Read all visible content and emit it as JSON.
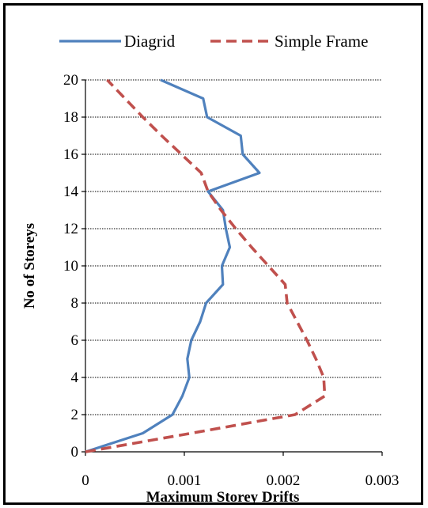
{
  "chart_data": {
    "type": "line",
    "xlabel": "Maximum Storey Drifts",
    "ylabel": "No of Storeys",
    "xlim": [
      0,
      0.003
    ],
    "ylim": [
      0,
      20
    ],
    "x_ticks": [
      "0",
      "0.001",
      "0.002",
      "0.003"
    ],
    "y_ticks": [
      "0",
      "2",
      "4",
      "6",
      "8",
      "10",
      "12",
      "14",
      "16",
      "18",
      "20"
    ],
    "grid": "horizontal",
    "legend_position": "top",
    "series": [
      {
        "name": "Diagrid",
        "color": "#4f81bd",
        "style": "solid",
        "points": [
          [
            0,
            0
          ],
          [
            0.00058,
            1
          ],
          [
            0.00088,
            2
          ],
          [
            0.00098,
            3
          ],
          [
            0.00105,
            4
          ],
          [
            0.00103,
            5
          ],
          [
            0.00107,
            6
          ],
          [
            0.00116,
            7
          ],
          [
            0.00122,
            8
          ],
          [
            0.00139,
            9
          ],
          [
            0.00138,
            10
          ],
          [
            0.00146,
            11
          ],
          [
            0.00142,
            12
          ],
          [
            0.00139,
            13
          ],
          [
            0.00124,
            14
          ],
          [
            0.00176,
            15
          ],
          [
            0.00159,
            16
          ],
          [
            0.00157,
            17
          ],
          [
            0.00123,
            18
          ],
          [
            0.00119,
            19
          ],
          [
            0.00076,
            20
          ]
        ]
      },
      {
        "name": "Simple Frame",
        "color": "#c0504d",
        "style": "dashed",
        "points": [
          [
            0,
            0
          ],
          [
            0.00107,
            1
          ],
          [
            0.00212,
            2
          ],
          [
            0.00242,
            3
          ],
          [
            0.00241,
            4
          ],
          [
            0.00233,
            5
          ],
          [
            0.00224,
            6
          ],
          [
            0.00214,
            7
          ],
          [
            0.00204,
            8
          ],
          [
            0.00202,
            9
          ],
          [
            0.00185,
            10
          ],
          [
            0.00168,
            11
          ],
          [
            0.00152,
            12
          ],
          [
            0.00137,
            13
          ],
          [
            0.00124,
            14
          ],
          [
            0.00117,
            15
          ],
          [
            0.00097,
            16
          ],
          [
            0.00077,
            17
          ],
          [
            0.00058,
            18
          ],
          [
            0.0004,
            19
          ],
          [
            0.00022,
            20
          ]
        ]
      }
    ]
  }
}
